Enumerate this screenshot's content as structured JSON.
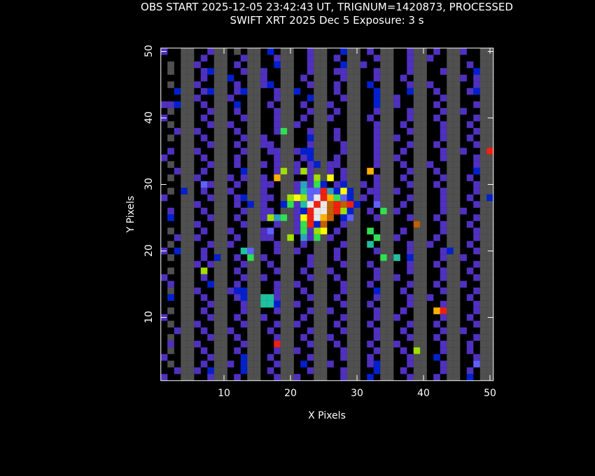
{
  "header": {
    "line1": "OBS START 2025-12-05 23:42:43 UT, TRIGNUM=1420873, PROCESSED",
    "line2": "SWIFT XRT   2025 Dec  5    Exposure: 3 s"
  },
  "chart_data": {
    "type": "heatmap",
    "xlabel": "X Pixels",
    "ylabel": "Y Pixels",
    "xlim": [
      0.5,
      50.5
    ],
    "ylim": [
      0.5,
      50.5
    ],
    "xticks": [
      "10",
      "20",
      "30",
      "40",
      "50"
    ],
    "yticks": [
      "10",
      "20",
      "30",
      "40",
      "50"
    ],
    "grid": false,
    "background": "#000000",
    "legend": {
      ".": "#000000",
      "g": "#505050",
      "p": "#5030c0",
      "b": "#0020d0",
      "l": "#6060ff",
      "C": "#30a0c0",
      "c": "#20c0a0",
      "G": "#30e050",
      "y": "#a0e000",
      "Y": "#ffff00",
      "o": "#ffb000",
      "n": "#c06000",
      "r": "#f02010",
      "w": "#e8e8e8"
    },
    "rows_top_to_bottom": [
      "p..gg..pgg.g.gg.b.gg..pgg..bgg.p.gg..pgg.p.ggp..gg",
      "...gg.p.gg..pgg..pgg..pgg.p.gg..pgg..pggp..gg...gg",
      ".g.ggp..gg.p.gg..bgg..pgg..bggp..gg..pgg...gg.p.gg",
      ".g.gg.pbgg..pggp..gg..pgg.ppgg..pgg..pgg..pgg..bgg",
      "...gg.p.ggb..ggp..gg.p.gg..pgg..pgg.p.gg...ggp.pgg",
      ".g.ggp..gg.p.ggpb.gg..pgg.p.gg.b.gg..pggp..gg..pgg",
      "..bgg.pbgg.pbgg..pggb..gg.p.gg..bgg..bgg.p.gg.pbgg",
      "...ggp..ggp..gg..pgg..bgg..pgg..bggp..gg..pgg...gg",
      "ppbgg.p.gg.b.gg.p.gg.p.ggp..gg..bggp..gg.p.gg..pgg",
      ".g.gg..pgg.p.gg..pgg..pgg.p.gg..pgg..pgg..pggp..gg",
      "p..gg.p.gg..pgg..pgg.p.ggp..gg.p.gg..pgg.p.gg..pgg",
      ".g.gg..pggp..gg..pggp..gg...gg..pgg.p.gg..pgg.p.gg",
      "..pggp..gg.p.gg..pGg..pgg.p.gg..pgg..pgg..pgg..pgg",
      ".g.gg.p.gg..pggp..gg..bgg.p.gg..pggp..gg..pgg.p.gg",
      "...gg..pgg.p.ggpp.gg..pgg..pgg..pgg..pgg.p.gg..pgg",
      ".p.ggp..gg..pgg.ppggpbbgg..pgg..pgg.p.gg..pggp..gr",
      "p..gg.p.gg.p.gg..pgg.pbgg.p.gg..pggp..gg..pgg..pgg",
      ".g.gg..pgg.p.ggp.pggp.pbgpp.gg..pgg.p.ggp..gg..pgg",
      "..pgg.p.gg..bgg..pygpypggp.pgg.o.gg..pgg.p.gg..bgg",
      ".g.ggp..ggp.pggp.ogg..pygY.pgg..pgg.p.gg..pgg.p.gg",
      "...gg.lpgg.p.ggpp.ggpCpGb.pbggp.pgg..pgg.p.gg..pgg",
      ".g.bg.p.ggp..ggp..ggpcllrCbYbg.ppggp..gg..pgg..pgg",
      "p..gg..pgg.pbggpp.gyYylwroGlbgp.pgg..pgg..pgg.p.gb",
      "...ggp..gg.p.bgp..bGpcwrwnrnrb..lgg.p.gg..pgg..pgg",
      ".p.gg.p.gg..pggpp.ggpbrwwnrybg.p.Ggp..gg..pggp..gg",
      ".b.gg..pgg.p.ggpyCGgpYrwon.blg..pgg..pgg.p.gg..pgg",
      "...ggp..gg..pgg..pggpGrbn..pgg...gg...ng..pgg.p.gg",
      ".g.gg.p.ggp..ggpl.ggpGpyY.p.gg.G.gg.p.gg..pgg..pgg",
      "..pggp..gg.p.ggpp.gy.CpGgp..gg..Gggp..gg.p.gg..pgg",
      ".g.gg..pggp..gg..pgg.p.gg..pgg.c.gg..pggp..gg.p.gg",
      "p.bgg.p.gg..clg..pggp..gg.p.gg..pgg..pgg..pbg..pgg",
      ".g.gg.p.bg.p.Ggp..gg..pgg.p.gg...Ggc.bgg..pggp..gg",
      "...ggp.pgg..pgg.p.gg..pgg..pgg.p.gg..pgg.p.gg..pgg",
      ".g.gg.y.gg.p.gg..pgg.p.ggp..gg..pgg..pgg..pgg.p.gg",
      "p..gg.p.gg..pggp..gg..pgg.p.gg..pggp..gg..pgg..pgg",
      ".p.gg..bgg.p.gg..pggp..gg..pgg.p.gg..pgg.p.ggp..gg",
      ".g.ggp..ggpbbgg..pgg.p.gg..pgg..bgg.p.gg..pgg..pgg",
      ".b.gg.p.gg.pbggccpgg..pgg.p.gg..pgg..pggp..gg.p.gg",
      "...gg..pgg..pggccbggp..gg..pgg.p.gg..pgg..pgg..pgg",
      ".g.gg.p.gg..pgg..pgg..pggp..gg..pgg.p.gg.orgg..pgg",
      "p..gg..pgg.p.ggp..gg.p.gg..pgg..pggp..gg..pgg.p.gg",
      ".g.ggp..gg..pgg..pggp..gg.p.gg.p.gg..pgg.p.gg..pgg",
      "..pgg.p.ggp..gg.p.gg..pgg..pgg..pgg.p.gg..pggp..gg",
      ".g.gg..pgg.p.gg..pgg.p.ggp..gg..pgg..pgg.p.gg..pgg",
      ".p.ggp..gg..pgg..rgg..pgg.p.gg.p.ggp..gg..pgg.p.gg",
      ".g.gg.p.gg.p.gg..pggp..gg..pgg..pgg.p.yg..pgg.p.gg",
      "p..gg..pgg..bgg.p.gg..pgg..pgg.p.gg..pgg.b.gg..pgg",
      ".g.gg.p.ggp.bgg..pgg.b.ggp..gg.pbgg..pgg..pgg..lgg",
      "..pggp.bgg..bgg.p.gg..pgg..pgg..bgg.p.gg..pgg.p.gg",
      "p..gg..pgg.p.gg..pggp..gg..pgg.b.gg..pgg.p.gg.b.gg"
    ]
  }
}
